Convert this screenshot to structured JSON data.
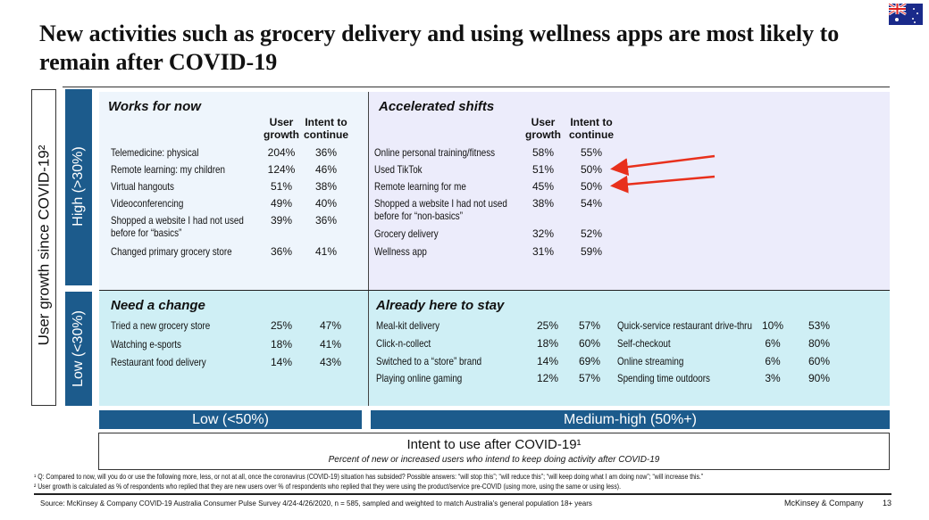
{
  "title": "New activities such as grocery delivery and using wellness apps are most likely to remain after COVID-19",
  "flag": "australia-flag",
  "y_axis_label": "User growth since COVID-19²",
  "y_high": "High (>30%)",
  "y_low": "Low (<30%)",
  "x_low": "Low (<50%)",
  "x_high": "Medium-high (50%+)",
  "x_axis_label": "Intent to use after COVID-19¹",
  "x_axis_sub": "Percent of new or increased users who intend to keep doing activity after COVID-19",
  "col_growth": "User growth",
  "col_intent": "Intent to continue",
  "colors": {
    "dark_blue": "#1c5b8c",
    "works": "#eef5fc",
    "accelerated": "#ececfb",
    "low_panels": "#cfeff5",
    "arrow": "#e8301c"
  },
  "works": {
    "title": "Works for now",
    "rows": [
      [
        "Telemedicine: physical",
        "204%",
        "36%"
      ],
      [
        "Remote learning: my children",
        "124%",
        "46%"
      ],
      [
        "Virtual hangouts",
        "51%",
        "38%"
      ],
      [
        "Videoconferencing",
        "49%",
        "40%"
      ],
      [
        "Shopped a website I had not used before for “basics”",
        "39%",
        "36%"
      ],
      [
        "Changed primary grocery store",
        "36%",
        "41%"
      ]
    ]
  },
  "accelerated": {
    "title": "Accelerated shifts",
    "rows": [
      [
        "Online personal training/fitness",
        "58%",
        "55%"
      ],
      [
        "Used TikTok",
        "51%",
        "50%"
      ],
      [
        "Remote learning for me",
        "45%",
        "50%"
      ],
      [
        "Shopped a website I had not used before for “non-basics”",
        "38%",
        "54%"
      ],
      [
        "Grocery delivery",
        "32%",
        "52%"
      ],
      [
        "Wellness app",
        "31%",
        "59%"
      ]
    ]
  },
  "need": {
    "title": "Need a change",
    "rows": [
      [
        "Tried a new grocery store",
        "25%",
        "47%"
      ],
      [
        "Watching e-sports",
        "18%",
        "41%"
      ],
      [
        "Restaurant food delivery",
        "14%",
        "43%"
      ]
    ]
  },
  "stay": {
    "title": "Already here to stay",
    "rows": [
      [
        "Meal-kit delivery",
        "25%",
        "57%"
      ],
      [
        "Click-n-collect",
        "18%",
        "60%"
      ],
      [
        "Switched to a “store” brand",
        "14%",
        "69%"
      ],
      [
        "Playing online gaming",
        "12%",
        "57%"
      ]
    ],
    "rows2": [
      [
        "Quick-service restaurant drive-thru",
        "10%",
        "53%"
      ],
      [
        "Self-checkout",
        "6%",
        "80%"
      ],
      [
        "Online streaming",
        "6%",
        "60%"
      ],
      [
        "Spending time outdoors",
        "3%",
        "90%"
      ]
    ]
  },
  "footnote1": "¹ Q: Compared to now, will you do or use the following more, less, or not at all, once the coronavirus (COVID-19) situation has subsided? Possible answers: “will stop this”; “will reduce this”; “will keep doing what I am doing now”; “will increase this.”",
  "footnote2": "² User growth is calculated as % of respondents who replied that they are new users over % of respondents who replied that they were using the product/service pre-COVID (using more, using the same or using less).",
  "source": "Source: McKinsey & Company COVID-19 Australia Consumer Pulse Survey 4/24-4/26/2020, n = 585, sampled and weighted to match Australia's general population 18+ years",
  "brand": "McKinsey & Company",
  "page": "13"
}
